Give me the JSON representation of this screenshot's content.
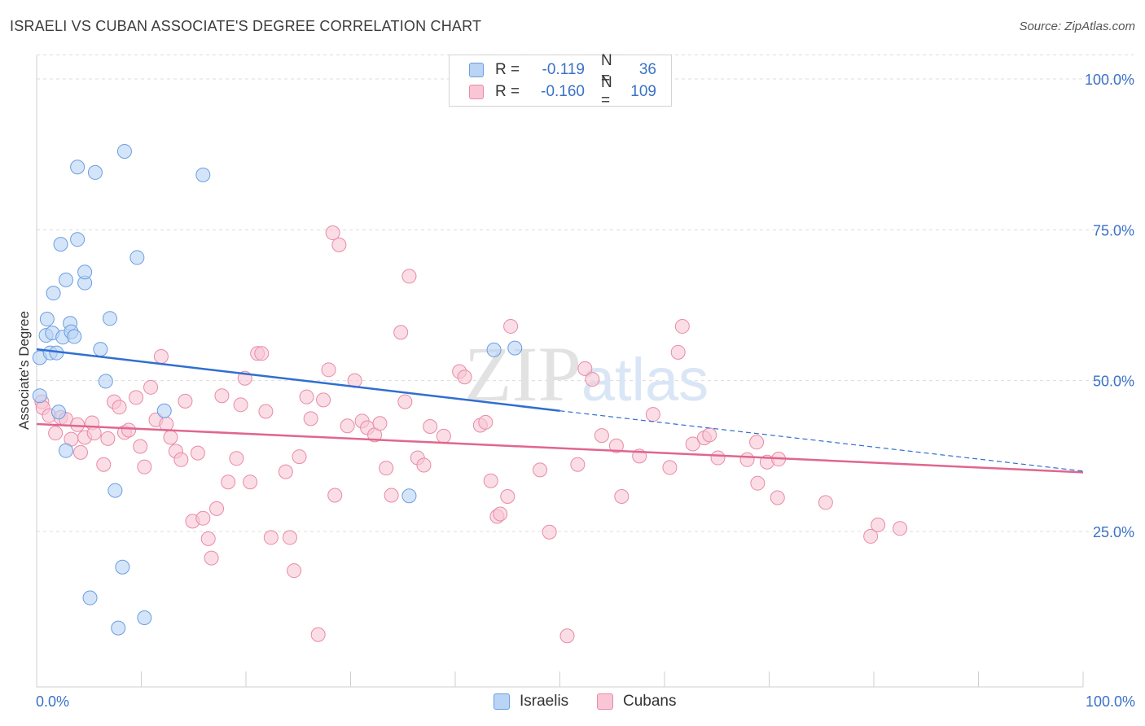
{
  "title": "ISRAELI VS CUBAN ASSOCIATE'S DEGREE CORRELATION CHART",
  "source": "Source: ZipAtlas.com",
  "watermark": "ZIPatlas",
  "legend_top": {
    "rows": [
      {
        "r_label": "R =",
        "r_value": "-0.119",
        "n_label": "N =",
        "n_value": "36"
      },
      {
        "r_label": "R =",
        "r_value": "-0.160",
        "n_label": "N =",
        "n_value": "109"
      }
    ]
  },
  "legend_bottom": {
    "series1": "Israelis",
    "series2": "Cubans"
  },
  "x_axis": {
    "left_label": "0.0%",
    "right_label": "100.0%"
  },
  "colors": {
    "israelis_fill": "#b9d4f5",
    "israelis_stroke": "#6a9ee0",
    "israelis_line": "#2f6fd1",
    "cubans_fill": "#f9c6d6",
    "cubans_stroke": "#e88aa8",
    "cubans_line": "#e0668f",
    "tick_text": "#3a72c8",
    "grid": "#dcdcdc"
  },
  "chart_data": {
    "type": "scatter",
    "title": "ISRAELI VS CUBAN ASSOCIATE'S DEGREE CORRELATION CHART",
    "xlabel": "",
    "ylabel": "Associate's Degree",
    "xlim": [
      0,
      100
    ],
    "ylim": [
      0,
      104
    ],
    "y_ticks": [
      25,
      50,
      75,
      100
    ],
    "y_tick_labels": [
      "25.0%",
      "50.0%",
      "75.0%",
      "100.0%"
    ],
    "x_tick_labels": [
      "0.0%",
      "100.0%"
    ],
    "grid": true,
    "series": [
      {
        "name": "Israelis",
        "r": -0.119,
        "n": 36,
        "trend": {
          "x0": 0,
          "y0": 55.2,
          "x1": 50,
          "y1": 45.0,
          "x_dash_end": 100,
          "y_dash_end": 35.0
        },
        "points": [
          [
            0.3,
            47.5
          ],
          [
            0.3,
            53.8
          ],
          [
            0.9,
            57.5
          ],
          [
            1.0,
            60.2
          ],
          [
            1.3,
            54.6
          ],
          [
            1.5,
            57.9
          ],
          [
            1.6,
            64.5
          ],
          [
            1.9,
            54.6
          ],
          [
            2.1,
            44.8
          ],
          [
            2.3,
            72.6
          ],
          [
            2.5,
            57.2
          ],
          [
            2.8,
            66.7
          ],
          [
            2.8,
            38.4
          ],
          [
            3.2,
            59.5
          ],
          [
            3.3,
            58.1
          ],
          [
            3.6,
            57.3
          ],
          [
            3.9,
            85.4
          ],
          [
            3.9,
            73.4
          ],
          [
            4.6,
            66.2
          ],
          [
            4.6,
            68.0
          ],
          [
            5.1,
            14.0
          ],
          [
            5.6,
            84.5
          ],
          [
            6.1,
            55.2
          ],
          [
            6.6,
            49.9
          ],
          [
            7.0,
            60.3
          ],
          [
            7.5,
            31.8
          ],
          [
            7.8,
            9.0
          ],
          [
            8.2,
            19.1
          ],
          [
            8.4,
            88.0
          ],
          [
            9.6,
            70.4
          ],
          [
            10.3,
            10.7
          ],
          [
            12.2,
            45.0
          ],
          [
            15.9,
            84.1
          ],
          [
            35.6,
            30.9
          ],
          [
            43.7,
            55.1
          ],
          [
            45.7,
            55.4
          ]
        ]
      },
      {
        "name": "Cubans",
        "r": -0.16,
        "n": 109,
        "trend": {
          "x0": 0,
          "y0": 42.8,
          "x1": 100,
          "y1": 34.8
        },
        "points": [
          [
            0.5,
            46.5
          ],
          [
            0.6,
            45.5
          ],
          [
            1.2,
            44.2
          ],
          [
            1.8,
            41.3
          ],
          [
            2.3,
            43.9
          ],
          [
            2.8,
            43.6
          ],
          [
            3.3,
            40.3
          ],
          [
            3.9,
            42.7
          ],
          [
            4.2,
            38.1
          ],
          [
            4.6,
            40.6
          ],
          [
            5.3,
            43.0
          ],
          [
            5.5,
            41.3
          ],
          [
            6.4,
            36.1
          ],
          [
            6.8,
            40.4
          ],
          [
            7.4,
            46.5
          ],
          [
            7.9,
            45.6
          ],
          [
            8.4,
            41.4
          ],
          [
            8.8,
            41.8
          ],
          [
            9.5,
            47.2
          ],
          [
            9.9,
            39.1
          ],
          [
            10.3,
            35.7
          ],
          [
            10.9,
            48.9
          ],
          [
            11.4,
            43.5
          ],
          [
            11.9,
            54.0
          ],
          [
            12.4,
            42.8
          ],
          [
            12.8,
            40.6
          ],
          [
            13.3,
            38.3
          ],
          [
            13.8,
            36.9
          ],
          [
            14.2,
            46.6
          ],
          [
            14.9,
            26.7
          ],
          [
            15.4,
            38.0
          ],
          [
            15.9,
            27.2
          ],
          [
            16.4,
            23.8
          ],
          [
            16.7,
            20.6
          ],
          [
            17.2,
            28.8
          ],
          [
            17.7,
            47.5
          ],
          [
            18.3,
            33.2
          ],
          [
            19.1,
            37.1
          ],
          [
            19.5,
            46.0
          ],
          [
            19.9,
            50.4
          ],
          [
            20.4,
            33.2
          ],
          [
            21.1,
            54.5
          ],
          [
            21.5,
            54.5
          ],
          [
            21.9,
            44.9
          ],
          [
            22.4,
            24.0
          ],
          [
            23.8,
            34.9
          ],
          [
            24.2,
            24.0
          ],
          [
            24.6,
            18.5
          ],
          [
            25.1,
            37.4
          ],
          [
            25.8,
            47.3
          ],
          [
            26.2,
            43.7
          ],
          [
            26.9,
            7.9
          ],
          [
            27.4,
            46.8
          ],
          [
            27.9,
            51.8
          ],
          [
            28.3,
            74.5
          ],
          [
            28.5,
            31.0
          ],
          [
            28.9,
            72.5
          ],
          [
            29.7,
            42.5
          ],
          [
            30.4,
            50.0
          ],
          [
            31.1,
            43.3
          ],
          [
            31.6,
            42.2
          ],
          [
            32.3,
            41.0
          ],
          [
            32.8,
            42.9
          ],
          [
            33.4,
            35.5
          ],
          [
            33.9,
            31.0
          ],
          [
            34.8,
            58.0
          ],
          [
            35.2,
            46.5
          ],
          [
            35.6,
            67.3
          ],
          [
            36.4,
            37.2
          ],
          [
            37.0,
            36.0
          ],
          [
            37.6,
            42.4
          ],
          [
            38.9,
            40.8
          ],
          [
            40.4,
            51.5
          ],
          [
            40.9,
            50.6
          ],
          [
            42.4,
            42.6
          ],
          [
            42.9,
            43.1
          ],
          [
            43.4,
            33.4
          ],
          [
            44.0,
            27.5
          ],
          [
            44.3,
            27.9
          ],
          [
            45.0,
            30.8
          ],
          [
            45.3,
            59.0
          ],
          [
            48.1,
            35.2
          ],
          [
            49.0,
            24.9
          ],
          [
            50.7,
            7.7
          ],
          [
            51.7,
            36.1
          ],
          [
            52.4,
            52.0
          ],
          [
            53.1,
            50.2
          ],
          [
            54.0,
            40.9
          ],
          [
            55.4,
            39.2
          ],
          [
            55.9,
            30.8
          ],
          [
            57.6,
            37.5
          ],
          [
            58.9,
            44.4
          ],
          [
            60.5,
            35.6
          ],
          [
            61.3,
            54.7
          ],
          [
            61.7,
            59.0
          ],
          [
            62.7,
            39.5
          ],
          [
            63.8,
            40.5
          ],
          [
            64.3,
            41.0
          ],
          [
            65.1,
            37.2
          ],
          [
            67.9,
            36.9
          ],
          [
            68.8,
            39.8
          ],
          [
            68.9,
            33.0
          ],
          [
            69.8,
            36.5
          ],
          [
            70.8,
            30.6
          ],
          [
            70.9,
            37.0
          ],
          [
            75.4,
            29.8
          ],
          [
            79.7,
            24.2
          ],
          [
            80.4,
            26.1
          ],
          [
            82.5,
            25.5
          ]
        ]
      }
    ]
  }
}
